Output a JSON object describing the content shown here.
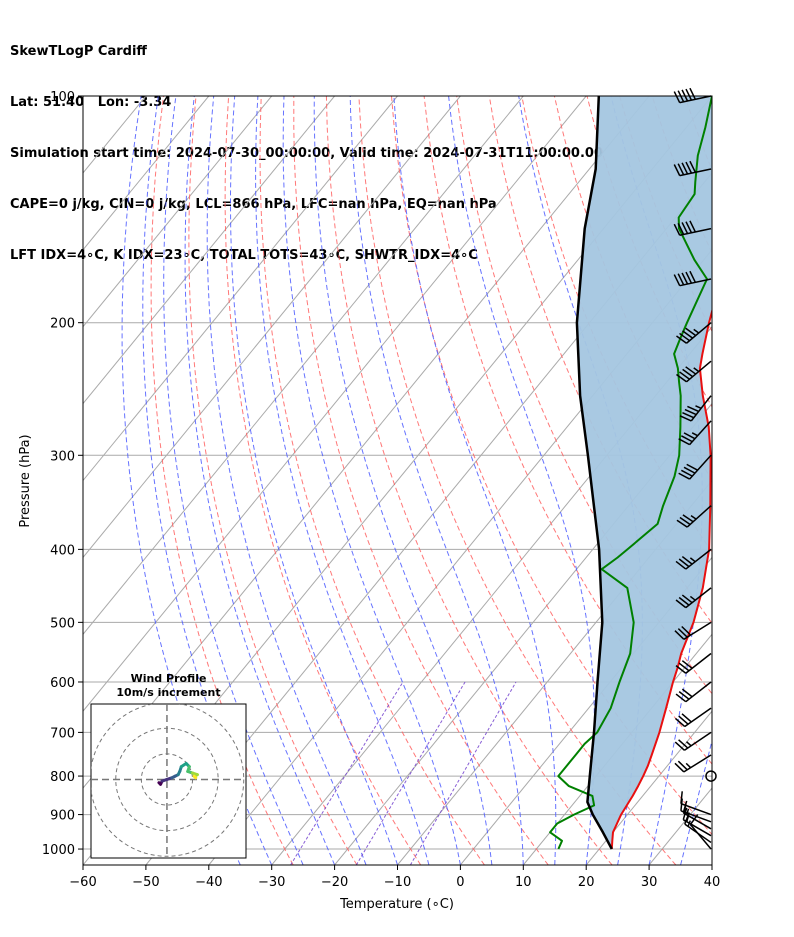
{
  "header": {
    "lines": [
      "SkewTLogP Cardiff",
      "Lat: 51.40   Lon: -3.34",
      "Simulation start time: 2024-07-30_00:00:00, Valid time: 2024-07-31T11:00:00.00",
      "CAPE=0 j/kg, CIN=0 j/kg, LCL=866 hPa, LFC=nan hPa, EQ=nan hPa",
      "LFT IDX=4∘C, K IDX=23∘C, TOTAL TOTS=43∘C, SHWTR_IDX=4∘C"
    ]
  },
  "chart_data": {
    "type": "line",
    "projection": "skew-T log-p",
    "xlabel": "Temperature (∘C)",
    "ylabel": "Pressure (hPa)",
    "xlim": [
      -60,
      40
    ],
    "ylim": [
      1050,
      100
    ],
    "y_scale": "log",
    "grid": true,
    "x_ticks": [
      -60,
      -50,
      -40,
      -30,
      -20,
      -10,
      0,
      10,
      20,
      30,
      40
    ],
    "x_tick_labels": [
      "−60",
      "−50",
      "−40",
      "−30",
      "−20",
      "−10",
      "0",
      "10",
      "20",
      "30",
      "40"
    ],
    "y_ticks": [
      1000,
      900,
      800,
      700,
      600,
      500,
      400,
      300,
      200,
      100
    ],
    "y_tick_labels": [
      "1000",
      "900",
      "800",
      "700",
      "600",
      "500",
      "400",
      "300",
      "200",
      "100"
    ],
    "colors": {
      "temperature": "#e81010",
      "dewpoint": "#008000",
      "parcel": "#000000",
      "shading": "#a4c6e0",
      "dry_adiabat": "#ff6060",
      "moist_adiabat": "#4b5aff",
      "mixing_ratio": "#7a4bd0",
      "isotherm_grid": "#aaaaaa"
    },
    "series": [
      {
        "key": "temperature",
        "points": [
          [
            1000,
            22.0
          ],
          [
            975,
            21.0
          ],
          [
            950,
            20.0
          ],
          [
            925,
            19.5
          ],
          [
            900,
            19.0
          ],
          [
            875,
            18.7
          ],
          [
            850,
            18.4
          ],
          [
            825,
            18.0
          ],
          [
            800,
            17.5
          ],
          [
            775,
            16.9
          ],
          [
            750,
            16.1
          ],
          [
            700,
            14.4
          ],
          [
            650,
            12.3
          ],
          [
            600,
            10.0
          ],
          [
            575,
            8.9
          ],
          [
            550,
            7.6
          ],
          [
            500,
            5.5
          ],
          [
            450,
            2.5
          ],
          [
            400,
            -1.5
          ],
          [
            350,
            -7.0
          ],
          [
            300,
            -13.5
          ],
          [
            275,
            -17.5
          ],
          [
            250,
            -22.5
          ],
          [
            230,
            -26.5
          ],
          [
            220,
            -28.0
          ],
          [
            200,
            -31.0
          ],
          [
            180,
            -34.0
          ],
          [
            160,
            -36.5
          ],
          [
            150,
            -37.0
          ],
          [
            140,
            -39.5
          ],
          [
            120,
            -45.0
          ],
          [
            110,
            -48.5
          ],
          [
            100,
            -52.0
          ]
        ]
      },
      {
        "key": "dewpoint",
        "points": [
          [
            1000,
            13.5
          ],
          [
            975,
            13.0
          ],
          [
            950,
            10.0
          ],
          [
            925,
            10.0
          ],
          [
            900,
            11.5
          ],
          [
            875,
            13.5
          ],
          [
            850,
            12.0
          ],
          [
            825,
            7.0
          ],
          [
            800,
            4.0
          ],
          [
            775,
            4.0
          ],
          [
            750,
            4.0
          ],
          [
            725,
            4.0
          ],
          [
            700,
            4.5
          ],
          [
            650,
            3.5
          ],
          [
            600,
            1.5
          ],
          [
            550,
            -0.5
          ],
          [
            500,
            -4.0
          ],
          [
            450,
            -9.5
          ],
          [
            425,
            -16.0
          ],
          [
            410,
            -15.0
          ],
          [
            400,
            -14.5
          ],
          [
            370,
            -13.0
          ],
          [
            350,
            -14.5
          ],
          [
            320,
            -16.5
          ],
          [
            300,
            -18.5
          ],
          [
            275,
            -22.0
          ],
          [
            250,
            -26.0
          ],
          [
            240,
            -28.0
          ],
          [
            230,
            -30.0
          ],
          [
            220,
            -32.5
          ],
          [
            210,
            -33.5
          ],
          [
            200,
            -34.5
          ],
          [
            175,
            -37.0
          ],
          [
            165,
            -41.5
          ],
          [
            150,
            -48.0
          ],
          [
            145,
            -49.5
          ],
          [
            135,
            -50.0
          ],
          [
            130,
            -51.5
          ],
          [
            120,
            -54.5
          ],
          [
            110,
            -57.0
          ],
          [
            100,
            -60.0
          ]
        ]
      },
      {
        "key": "parcel",
        "points": [
          [
            1000,
            22.0
          ],
          [
            950,
            18.4
          ],
          [
            900,
            14.5
          ],
          [
            866,
            12.0
          ],
          [
            800,
            9.0
          ],
          [
            700,
            4.0
          ],
          [
            600,
            -2.0
          ],
          [
            500,
            -9.0
          ],
          [
            400,
            -19.0
          ],
          [
            300,
            -33.0
          ],
          [
            250,
            -42.0
          ],
          [
            200,
            -52.0
          ],
          [
            150,
            -63.0
          ],
          [
            125,
            -69.0
          ],
          [
            100,
            -78.0
          ]
        ]
      }
    ],
    "wind_barbs": {
      "pressures": [
        1000,
        980,
        960,
        940,
        920,
        900,
        800,
        750,
        700,
        650,
        600,
        550,
        500,
        450,
        400,
        350,
        300,
        270,
        250,
        225,
        200,
        175,
        150,
        125,
        100
      ],
      "speeds_kt": [
        10,
        15,
        15,
        15,
        15,
        10,
        0,
        25,
        25,
        30,
        30,
        30,
        30,
        35,
        35,
        35,
        40,
        35,
        45,
        45,
        45,
        50,
        50,
        50,
        50
      ],
      "directions_deg": [
        320,
        305,
        300,
        300,
        290,
        290,
        0,
        238,
        236,
        235,
        232,
        232,
        238,
        232,
        232,
        228,
        222,
        222,
        218,
        230,
        230,
        258,
        258,
        258,
        258
      ]
    },
    "hodograph": {
      "title_lines": [
        "Wind Profile",
        "10m/s increment"
      ],
      "rings_ms": [
        10,
        20,
        30
      ],
      "points_uv": [
        [
          -5,
          -2
        ],
        [
          -4,
          -3
        ],
        [
          -3,
          -1
        ],
        [
          0,
          0
        ],
        [
          3,
          1
        ],
        [
          5,
          2
        ],
        [
          7,
          3
        ],
        [
          8,
          5
        ],
        [
          9,
          8
        ],
        [
          12,
          10
        ],
        [
          14,
          8
        ],
        [
          13,
          5
        ],
        [
          16,
          4
        ],
        [
          19,
          3
        ],
        [
          17,
          2
        ],
        [
          18,
          1
        ]
      ]
    }
  }
}
